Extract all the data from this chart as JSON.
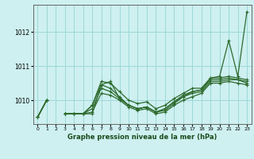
{
  "title": "Graphe pression niveau de la mer (hPa)",
  "xlabel": "Graphe pression niveau de la mer (hPa)",
  "background_color": "#cef0f0",
  "grid_color": "#9dd8d8",
  "line_color": "#2d6a2d",
  "xlim": [
    -0.5,
    23.5
  ],
  "ylim": [
    1009.3,
    1012.8
  ],
  "yticks": [
    1010,
    1011,
    1012
  ],
  "xticks": [
    0,
    1,
    2,
    3,
    4,
    5,
    6,
    7,
    8,
    9,
    10,
    11,
    12,
    13,
    14,
    15,
    16,
    17,
    18,
    19,
    20,
    21,
    22,
    23
  ],
  "series": [
    [
      1009.5,
      1010.0,
      null,
      1009.6,
      1009.6,
      1009.6,
      1009.6,
      1010.45,
      1010.55,
      1010.05,
      1009.85,
      1009.75,
      1009.8,
      1009.65,
      1009.75,
      1009.95,
      1010.15,
      1010.25,
      1010.3,
      1010.65,
      1010.7,
      1011.75,
      1010.7,
      1012.6
    ],
    [
      1009.5,
      1010.0,
      null,
      1009.6,
      1009.6,
      1009.6,
      1009.85,
      1010.55,
      1010.5,
      1010.25,
      1010.0,
      1009.9,
      1009.95,
      1009.75,
      1009.85,
      1010.05,
      1010.2,
      1010.35,
      1010.35,
      1010.65,
      1010.65,
      1010.7,
      1010.65,
      1010.6
    ],
    [
      1009.5,
      1010.0,
      null,
      1009.6,
      1009.6,
      1009.6,
      1009.85,
      1010.45,
      1010.35,
      1010.1,
      1009.85,
      1009.75,
      1009.8,
      1009.65,
      1009.75,
      1009.95,
      1010.1,
      1010.25,
      1010.3,
      1010.6,
      1010.6,
      1010.65,
      1010.6,
      1010.55
    ],
    [
      1009.5,
      1010.0,
      null,
      1009.6,
      1009.6,
      1009.6,
      1009.75,
      1010.35,
      1010.25,
      1010.05,
      1009.85,
      1009.75,
      1009.8,
      1009.65,
      1009.7,
      1009.9,
      1010.1,
      1010.2,
      1010.25,
      1010.55,
      1010.55,
      1010.6,
      1010.6,
      1010.5
    ],
    [
      1009.5,
      1010.0,
      null,
      1009.6,
      1009.6,
      1009.6,
      1009.65,
      1010.2,
      1010.15,
      1010.0,
      1009.8,
      1009.7,
      1009.75,
      1009.6,
      1009.65,
      1009.85,
      1010.0,
      1010.1,
      1010.2,
      1010.5,
      1010.5,
      1010.55,
      1010.5,
      1010.45
    ]
  ],
  "marker": "+",
  "markersize": 3.5,
  "linewidth": 0.9,
  "xlabel_fontsize": 6.0,
  "xlabel_fontweight": "bold",
  "xlabel_color": "#1a4a1a",
  "ytick_fontsize": 5.5,
  "xtick_fontsize": 4.5
}
